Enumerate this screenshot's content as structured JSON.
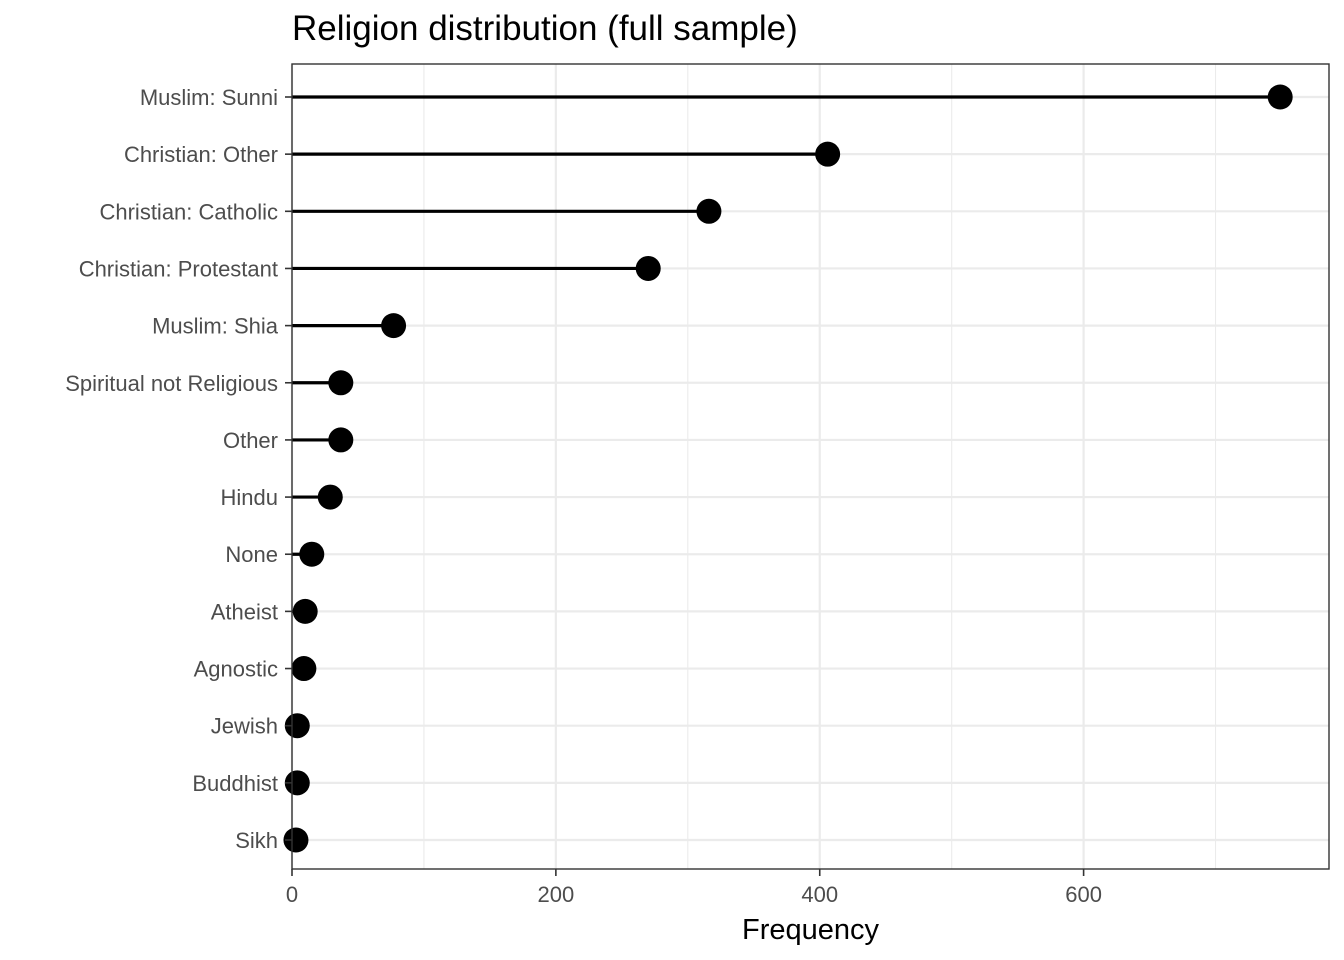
{
  "chart_data": {
    "type": "lollipop",
    "title": "Religion distribution (full sample)",
    "xlabel": "Frequency",
    "ylabel": "",
    "xlim": [
      0,
      786
    ],
    "x_ticks": [
      0,
      200,
      400,
      600
    ],
    "x_tick_labels": [
      "0",
      "200",
      "400",
      "600"
    ],
    "grid": true,
    "categories": [
      "Muslim: Sunni",
      "Christian: Other",
      "Christian: Catholic",
      "Christian: Protestant",
      "Muslim: Shia",
      "Spiritual not Religious",
      "Other",
      "Hindu",
      "None",
      "Atheist",
      "Agnostic",
      "Jewish",
      "Buddhist",
      "Sikh"
    ],
    "values": [
      749,
      406,
      316,
      270,
      77,
      37,
      37,
      29,
      15,
      10,
      9,
      4,
      4,
      3
    ],
    "colors": {
      "point": "#000000",
      "segment": "#000000",
      "grid": "#ebebeb",
      "panel_border": "#333333",
      "text": "#4d4d4d"
    }
  }
}
